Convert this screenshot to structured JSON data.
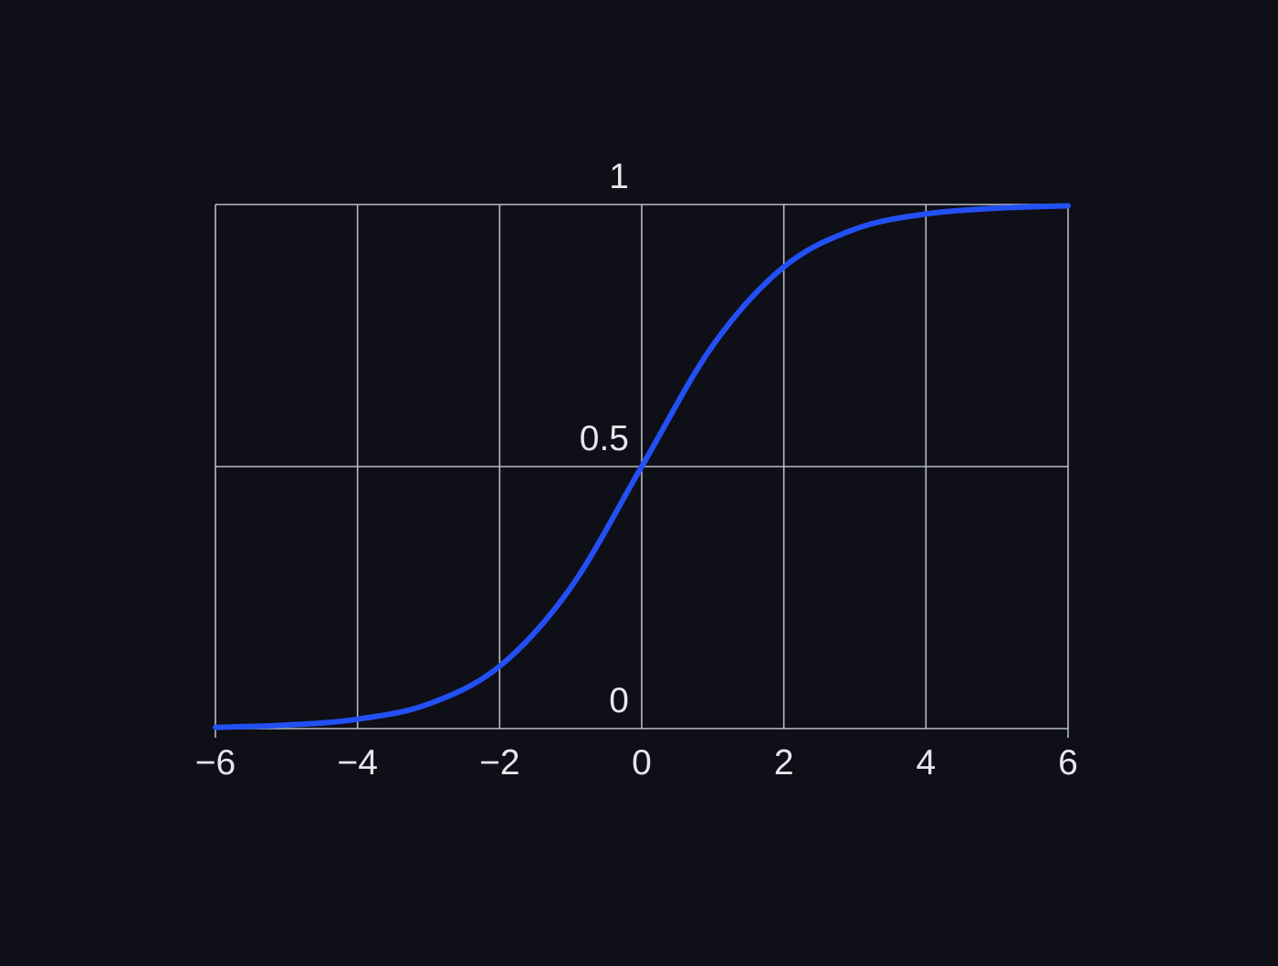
{
  "chart_data": {
    "type": "line",
    "title": "",
    "xlabel": "",
    "ylabel": "",
    "xlim": [
      -6,
      6
    ],
    "ylim": [
      0,
      1
    ],
    "grid": true,
    "legend": "none",
    "x_ticks": [
      -6,
      -4,
      -2,
      0,
      2,
      4,
      6
    ],
    "x_tick_labels": [
      "−6",
      "−4",
      "−2",
      "0",
      "2",
      "4",
      "6"
    ],
    "y_ticks": [
      0,
      0.5,
      1
    ],
    "y_tick_labels": [
      "0",
      "0.5",
      "1"
    ],
    "series": [
      {
        "color": "#2350f5",
        "x": [
          -6,
          -5,
          -4,
          -3,
          -2,
          -1,
          0,
          1,
          2,
          3,
          4,
          5,
          6
        ],
        "y": [
          0.0025,
          0.0067,
          0.018,
          0.047,
          0.119,
          0.269,
          0.5,
          0.731,
          0.881,
          0.953,
          0.982,
          0.993,
          0.9975
        ]
      }
    ]
  },
  "colors": {
    "background": "#0e0f17",
    "grid": "#b9bbc4",
    "text": "#e6e7ee"
  }
}
